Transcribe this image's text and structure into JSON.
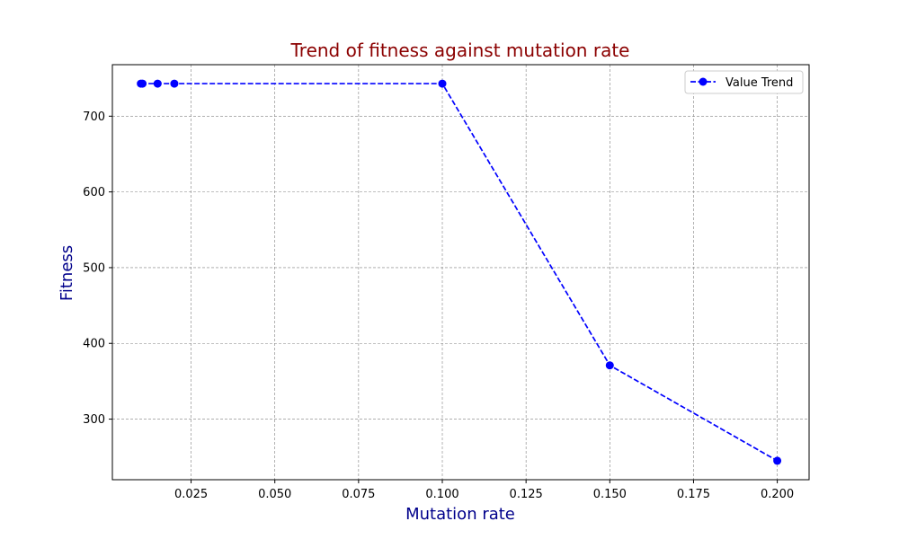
{
  "chart_data": {
    "type": "line",
    "title": "Trend of fitness against mutation rate",
    "xlabel": "Mutation rate",
    "ylabel": "Fitness",
    "xlim": [
      0.0015,
      0.2095
    ],
    "ylim": [
      220,
      768
    ],
    "x_ticks": [
      0.025,
      0.05,
      0.075,
      0.1,
      0.125,
      0.15,
      0.175,
      0.2
    ],
    "x_tick_labels": [
      "0.025",
      "0.050",
      "0.075",
      "0.100",
      "0.125",
      "0.150",
      "0.175",
      "0.200"
    ],
    "y_ticks": [
      300,
      400,
      500,
      600,
      700
    ],
    "y_tick_labels": [
      "300",
      "400",
      "500",
      "600",
      "700"
    ],
    "grid": true,
    "legend_position": "top-right",
    "series": [
      {
        "name": "Value Trend",
        "line_style": "dashed",
        "marker": "circle",
        "color": "#0000ff",
        "x": [
          0.01,
          0.0105,
          0.015,
          0.02,
          0.1,
          0.15,
          0.2
        ],
        "y": [
          743,
          743,
          743,
          743,
          743,
          371,
          245
        ]
      }
    ]
  },
  "colors": {
    "title": "#8b0000",
    "axis_label": "#00008b",
    "series": "#0000ff",
    "grid": "#808080"
  }
}
